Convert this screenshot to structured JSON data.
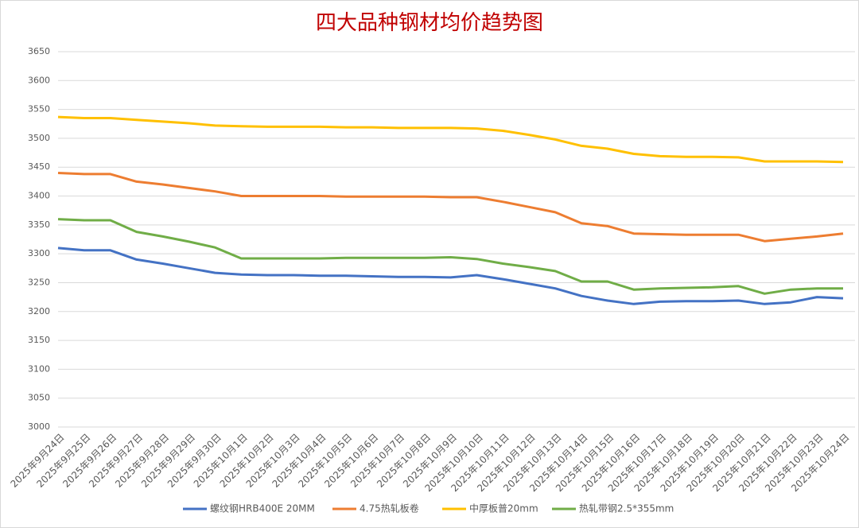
{
  "chart_data": {
    "type": "line",
    "title": "四大品种钢材均价趋势图",
    "categories": [
      "2025年9月24日",
      "2025年9月25日",
      "2025年9月26日",
      "2025年9月27日",
      "2025年9月28日",
      "2025年9月29日",
      "2025年9月30日",
      "2025年10月1日",
      "2025年10月2日",
      "2025年10月3日",
      "2025年10月4日",
      "2025年10月5日",
      "2025年10月6日",
      "2025年10月7日",
      "2025年10月8日",
      "2025年10月9日",
      "2025年10月10日",
      "2025年10月11日",
      "2025年10月12日",
      "2025年10月13日",
      "2025年10月14日",
      "2025年10月15日",
      "2025年10月16日",
      "2025年10月17日",
      "2025年10月18日",
      "2025年10月19日",
      "2025年10月20日",
      "2025年10月21日",
      "2025年10月22日",
      "2025年10月23日",
      "2025年10月24日"
    ],
    "series": [
      {
        "name": "螺纹钢HRB400E 20MM",
        "color": "#4472c4",
        "values": [
          3310,
          3306,
          3306,
          3290,
          3283,
          3275,
          3267,
          3264,
          3263,
          3263,
          3262,
          3262,
          3261,
          3260,
          3260,
          3259,
          3263,
          3256,
          3248,
          3240,
          3227,
          3219,
          3213,
          3217,
          3218,
          3218,
          3219,
          3213,
          3216,
          3225,
          3223
        ]
      },
      {
        "name": "4.75热轧板卷",
        "color": "#ed7d31",
        "values": [
          3440,
          3438,
          3438,
          3425,
          3420,
          3414,
          3408,
          3400,
          3400,
          3400,
          3400,
          3399,
          3399,
          3399,
          3399,
          3398,
          3398,
          3390,
          3381,
          3372,
          3353,
          3348,
          3335,
          3334,
          3333,
          3333,
          3333,
          3322,
          3326,
          3330,
          3335
        ]
      },
      {
        "name": "中厚板普20mm",
        "color": "#ffc000",
        "values": [
          3537,
          3535,
          3535,
          3532,
          3529,
          3526,
          3522,
          3521,
          3520,
          3520,
          3520,
          3519,
          3519,
          3518,
          3518,
          3518,
          3517,
          3513,
          3506,
          3498,
          3487,
          3482,
          3473,
          3469,
          3468,
          3468,
          3467,
          3460,
          3460,
          3460,
          3459
        ]
      },
      {
        "name": "热轧带钢2.5*355mm",
        "color": "#70ad47",
        "values": [
          3360,
          3358,
          3358,
          3338,
          3330,
          3321,
          3311,
          3292,
          3292,
          3292,
          3292,
          3293,
          3293,
          3293,
          3293,
          3294,
          3291,
          3283,
          3277,
          3270,
          3252,
          3252,
          3238,
          3240,
          3241,
          3242,
          3244,
          3231,
          3238,
          3240,
          3240
        ]
      }
    ],
    "ylim": [
      3000,
      3650
    ],
    "yticks": [
      3000,
      3050,
      3100,
      3150,
      3200,
      3250,
      3300,
      3350,
      3400,
      3450,
      3500,
      3550,
      3600,
      3650
    ],
    "grid": true
  }
}
